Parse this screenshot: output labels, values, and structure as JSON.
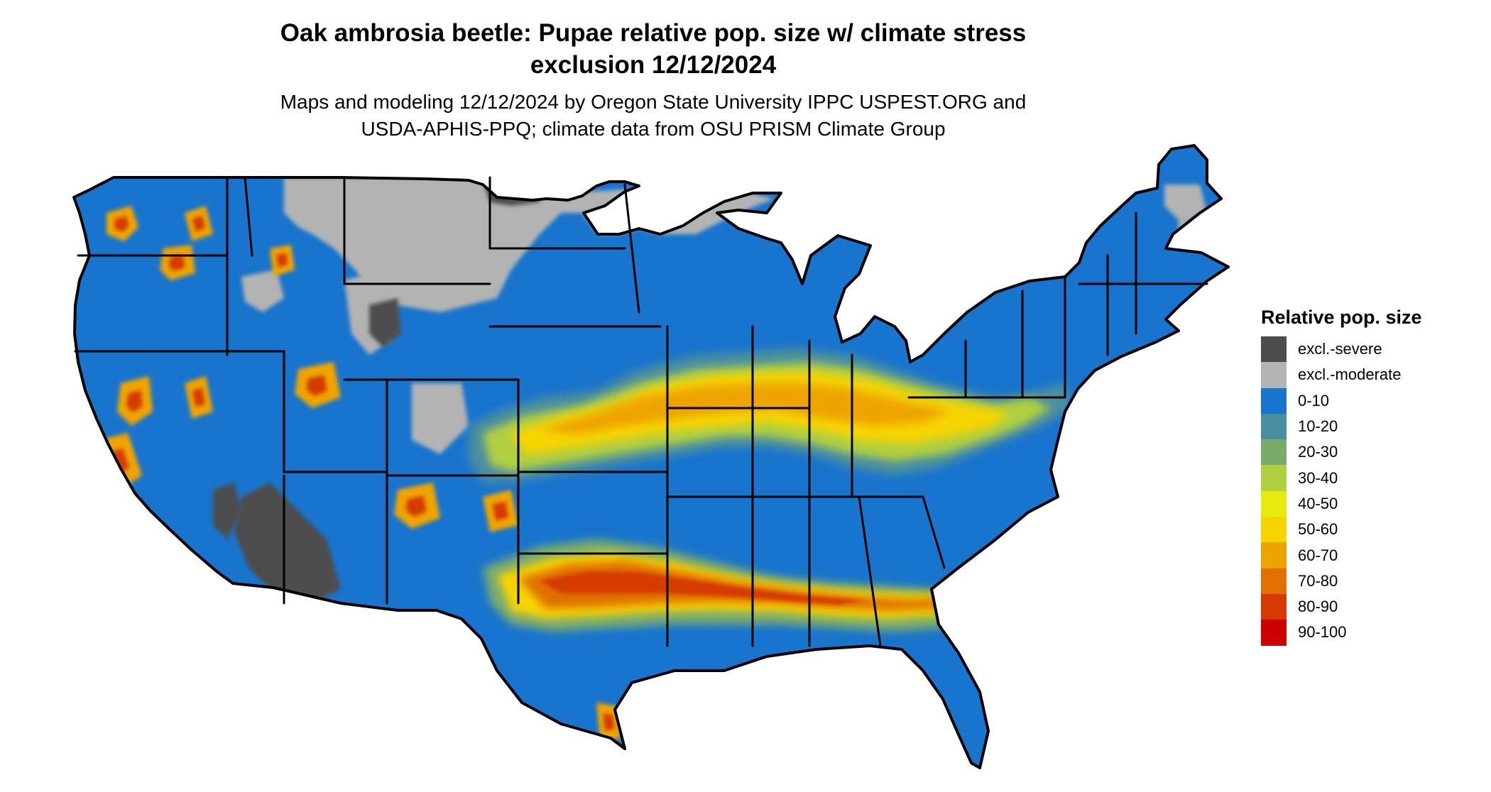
{
  "title": {
    "line1": "Oak ambrosia beetle: Pupae relative pop. size w/ climate stress",
    "line2": "exclusion 12/12/2024"
  },
  "subtitle": {
    "line1": "Maps and modeling 12/12/2024 by Oregon State University IPPC USPEST.ORG and",
    "line2": "USDA-APHIS-PPQ; climate data from OSU PRISM Climate Group"
  },
  "legend": {
    "title": "Relative pop. size",
    "items": [
      {
        "label": "excl.-severe",
        "color": "#4d4d4d"
      },
      {
        "label": "excl.-moderate",
        "color": "#b3b3b3"
      },
      {
        "label": "0-10",
        "color": "#1874cd"
      },
      {
        "label": "10-20",
        "color": "#4a8fa0"
      },
      {
        "label": "20-30",
        "color": "#7aab6d"
      },
      {
        "label": "30-40",
        "color": "#b1cf41"
      },
      {
        "label": "40-50",
        "color": "#e5ea0f"
      },
      {
        "label": "50-60",
        "color": "#f7d400"
      },
      {
        "label": "60-70",
        "color": "#eea400"
      },
      {
        "label": "70-80",
        "color": "#e07000"
      },
      {
        "label": "80-90",
        "color": "#d63a00"
      },
      {
        "label": "90-100",
        "color": "#cd0000"
      }
    ]
  },
  "map": {
    "base_color": "#1874cd",
    "boundary_color": "#000000"
  }
}
